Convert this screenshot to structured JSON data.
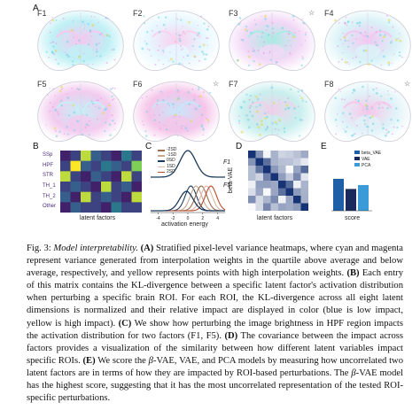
{
  "panelA": {
    "letter": "A",
    "brains": [
      {
        "label": "F1",
        "star": ""
      },
      {
        "label": "F2",
        "star": ""
      },
      {
        "label": "F3",
        "star": "☆"
      },
      {
        "label": "F4",
        "star": ""
      },
      {
        "label": "F5",
        "star": ""
      },
      {
        "label": "F6",
        "star": "☆"
      },
      {
        "label": "F7",
        "star": ""
      },
      {
        "label": "F8",
        "star": "☆"
      }
    ]
  },
  "panelB": {
    "letter": "B",
    "rows": [
      "SSp",
      "HPF",
      "STR",
      "TH_1",
      "TH_2",
      "Other"
    ],
    "xlabel": "latent factors",
    "cells": [
      [
        0.1,
        0.2,
        0.9,
        0.3,
        0.2,
        0.1,
        0.4,
        0.2
      ],
      [
        0.2,
        1.0,
        0.3,
        0.2,
        0.4,
        0.3,
        0.2,
        0.8
      ],
      [
        0.9,
        0.2,
        0.1,
        0.3,
        0.2,
        0.1,
        0.9,
        0.2
      ],
      [
        0.2,
        0.3,
        0.2,
        0.1,
        0.9,
        0.2,
        0.3,
        0.1
      ],
      [
        0.3,
        0.1,
        0.9,
        0.2,
        0.3,
        0.2,
        0.1,
        0.9
      ],
      [
        0.1,
        0.3,
        0.2,
        0.2,
        0.1,
        0.4,
        0.2,
        0.2
      ]
    ]
  },
  "panelC": {
    "letter": "C",
    "legend": [
      "-2SD",
      "-1SD",
      "0SD",
      "1SD",
      "2SD"
    ],
    "colors": [
      "#9c6b4e",
      "#c9a68f",
      "#1b3a5c",
      "#e0b8a8",
      "#b84c2e"
    ],
    "f1_label": "F1",
    "f5_label": "F5",
    "xlabel": "activation energy",
    "ticks": [
      "-4",
      "-2",
      "0",
      "2",
      "4"
    ]
  },
  "panelD": {
    "letter": "D",
    "ylabel": "beta-VAE",
    "xlabel": "latent factors"
  },
  "panelE": {
    "letter": "E",
    "legend": [
      "beta_VAE",
      "VAE",
      "PCA"
    ],
    "colors": [
      "#1e5fa8",
      "#1b2a5c",
      "#3b9bd8"
    ],
    "xlabel": "score"
  },
  "chart_data": [
    {
      "type": "bar",
      "categories": [
        "beta_VAE",
        "VAE",
        "PCA"
      ],
      "values": [
        0.41,
        0.28,
        0.33
      ],
      "xlabel": "score",
      "ylabel": ""
    }
  ],
  "caption": {
    "figlabel": "Fig. 3:",
    "title": "Model interpretability.",
    "A_tag": "(A)",
    "A_text": " Stratified pixel-level variance heatmaps, where cyan and magenta represent variance generated from interpolation weights in the quartile above average and below average, respectively, and yellow represents points with high interpolation weights. ",
    "B_tag": "(B)",
    "B_text": " Each entry of this matrix contains the KL-divergence between a specific latent factor's activation distribution when perturbing a specific brain ROI. For each ROI, the KL-divergence across all eight latent dimensions is normalized and their relative impact are displayed in color (blue is low impact, yellow is high impact). ",
    "C_tag": "(C)",
    "C_text": " We show how perturbing the image brightness in HPF region impacts the activation distribution for two factors (F1, F5). ",
    "D_tag": "(D)",
    "D_text": " The covariance between the impact across factors provides a visualization of the similarity between how different latent variables impact specific ROIs. ",
    "E_tag": "(E)",
    "E_text1": " We score the ",
    "beta": "β",
    "E_text2": "-VAE, VAE, and PCA models by measuring how uncorrelated two latent factors are in terms of how they are impacted by ROI-based perturbations. The ",
    "E_text3": "-VAE model has the highest score, suggesting that it has the most uncorrelated representation of the tested ROI-specific perturbations."
  }
}
